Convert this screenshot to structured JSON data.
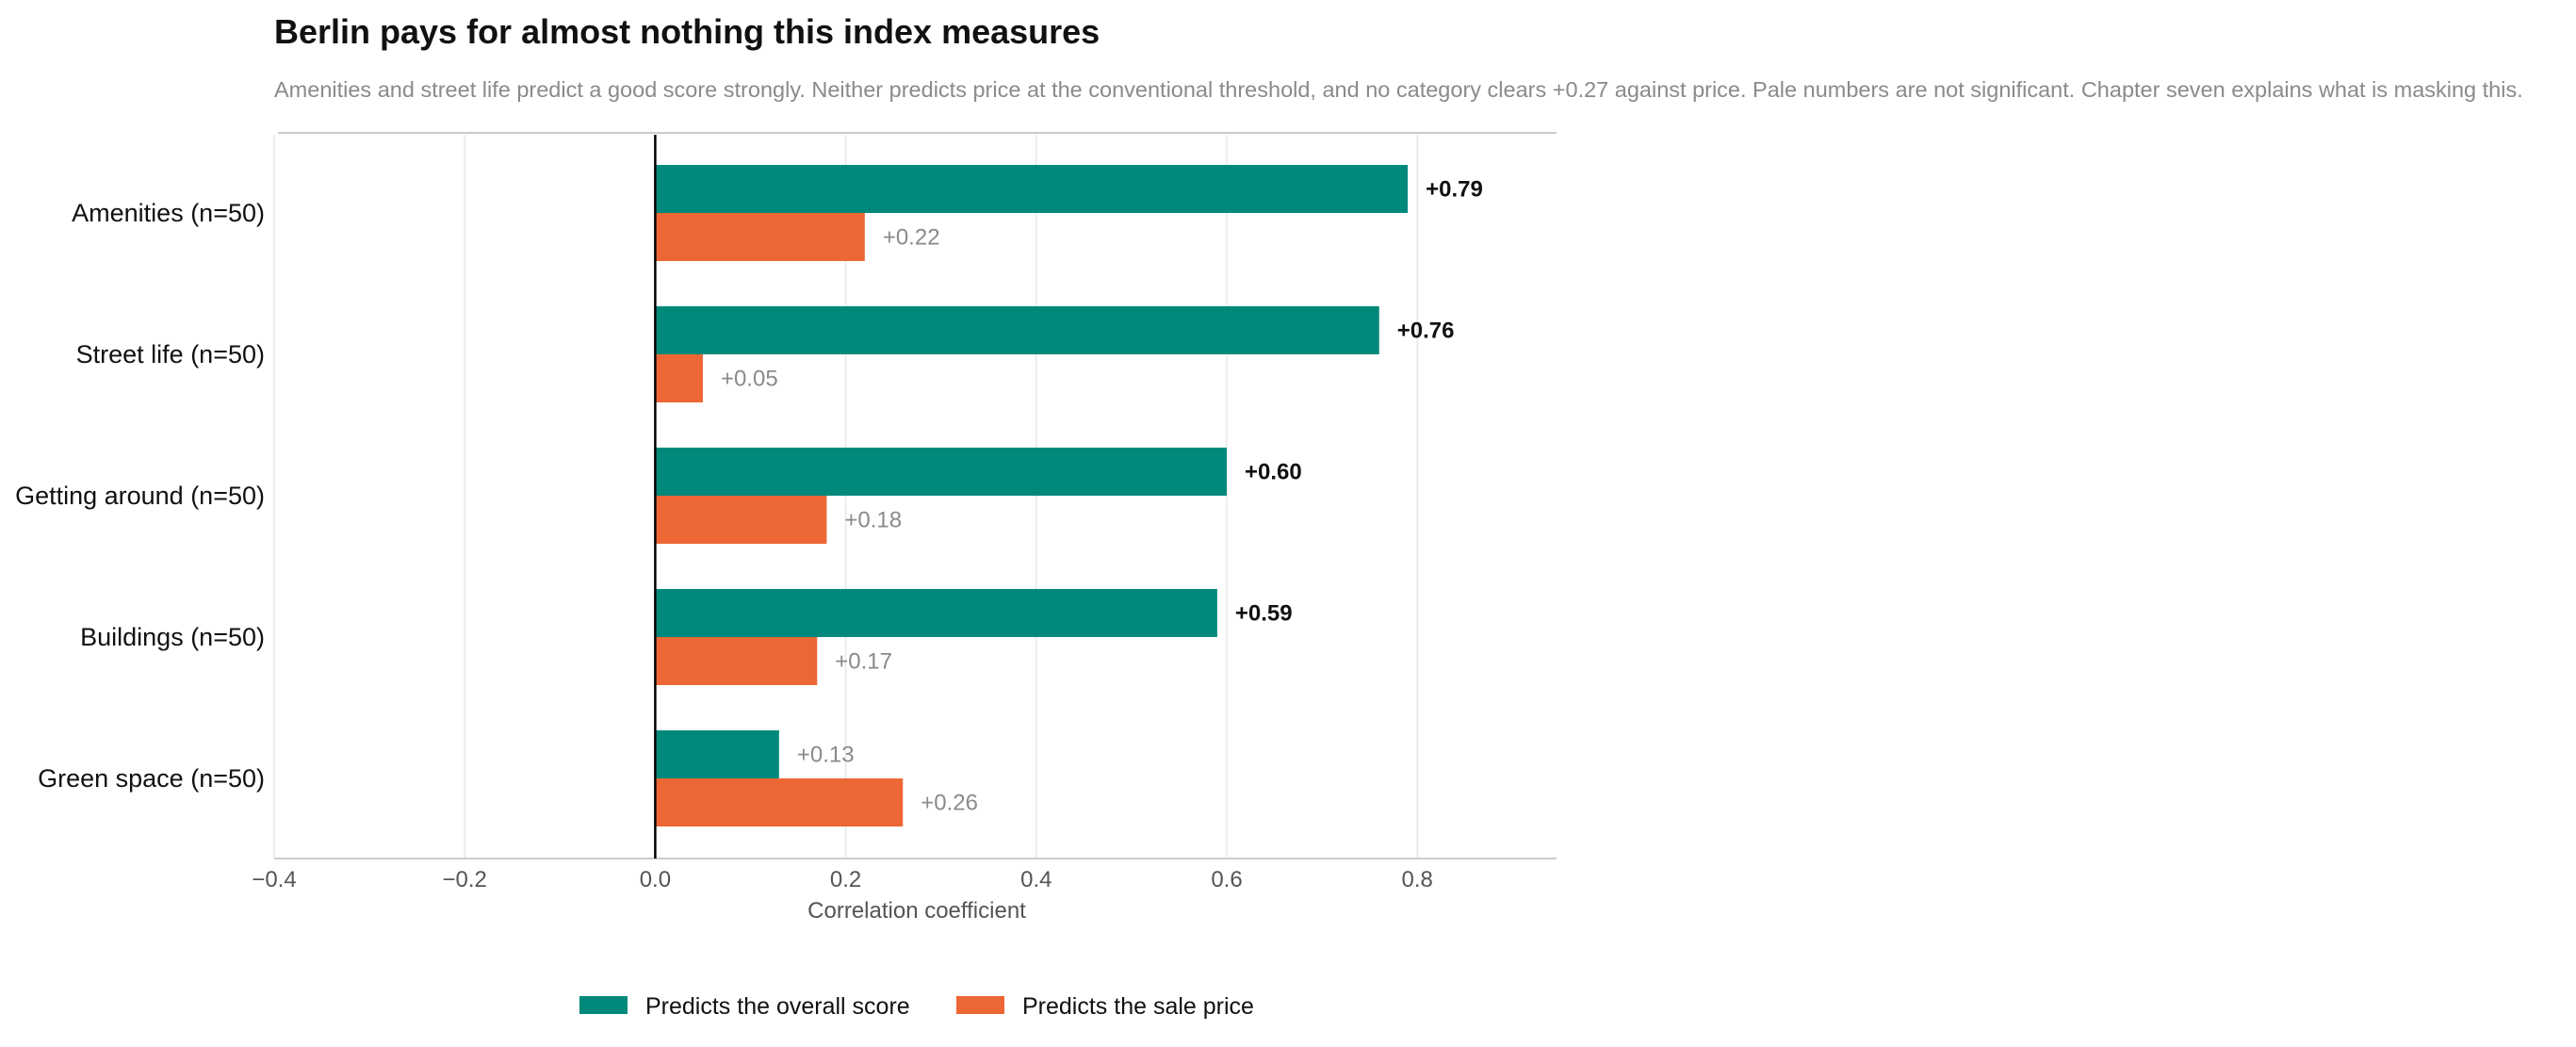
{
  "chart_data": {
    "type": "bar",
    "orientation": "horizontal",
    "title": "Berlin pays for almost nothing this index measures",
    "subtitle": "Amenities and street life predict a good score strongly. Neither predicts price at the conventional threshold, and no category clears +0.27 against price. Pale numbers are not significant. Chapter seven explains what is masking this.",
    "xlabel": "Correlation coefficient",
    "ylabel": "",
    "xlim": [
      -0.4,
      0.95
    ],
    "xticks": [
      -0.4,
      -0.2,
      0.0,
      0.2,
      0.4,
      0.6,
      0.8
    ],
    "xtick_labels": [
      "−0.4",
      "−0.2",
      "0.0",
      "0.2",
      "0.4",
      "0.6",
      "0.8"
    ],
    "grid": "vertical",
    "legend_position": "bottom-center",
    "categories": [
      "Amenities (n=50)",
      "Street life (n=50)",
      "Getting around (n=50)",
      "Buildings (n=50)",
      "Green space (n=50)"
    ],
    "series": [
      {
        "name": "Predicts the overall score",
        "color": "#00897b",
        "values": [
          0.79,
          0.76,
          0.6,
          0.59,
          0.13
        ],
        "labels": [
          "+0.79",
          "+0.76",
          "+0.60",
          "+0.59",
          "+0.13"
        ],
        "significant": [
          true,
          true,
          true,
          true,
          false
        ]
      },
      {
        "name": "Predicts the sale price",
        "color": "#ec6735",
        "values": [
          0.22,
          0.05,
          0.18,
          0.17,
          0.26
        ],
        "labels": [
          "+0.22",
          "+0.05",
          "+0.18",
          "+0.17",
          "+0.26"
        ],
        "significant": [
          false,
          false,
          false,
          false,
          false
        ]
      }
    ]
  }
}
